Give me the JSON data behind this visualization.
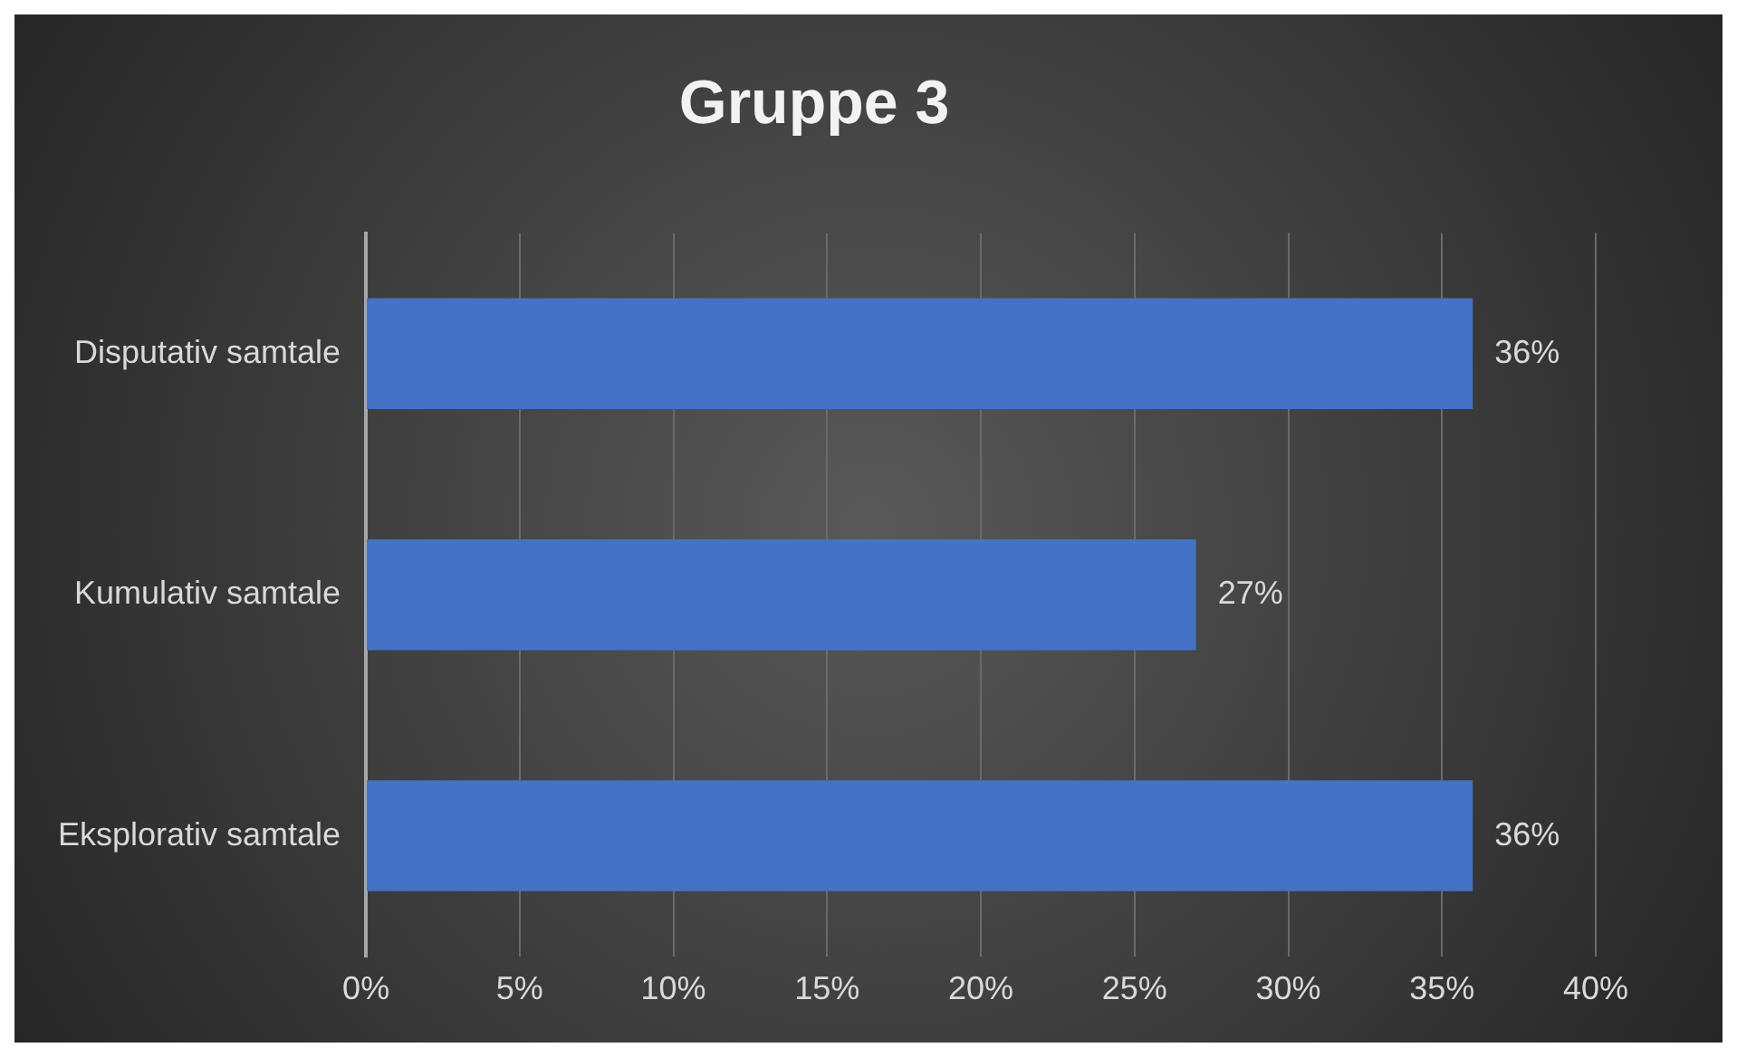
{
  "chart_data": {
    "type": "bar",
    "title": "Gruppe 3",
    "orientation": "horizontal",
    "categories": [
      "Disputativ samtale",
      "Kumulativ samtale",
      "Eksplorativ samtale"
    ],
    "values": [
      36,
      27,
      36
    ],
    "color": "#4472c4",
    "value_labels": [
      "36%",
      "27%",
      "36%"
    ],
    "xlim": [
      0,
      40
    ],
    "xticks": [
      {
        "value": 0,
        "label": "0%"
      },
      {
        "value": 5,
        "label": "5%"
      },
      {
        "value": 10,
        "label": "10%"
      },
      {
        "value": 15,
        "label": "15%"
      },
      {
        "value": 20,
        "label": "20%"
      },
      {
        "value": 25,
        "label": "25%"
      },
      {
        "value": 30,
        "label": "30%"
      },
      {
        "value": 35,
        "label": "35%"
      },
      {
        "value": 40,
        "label": "40%"
      }
    ],
    "grid": "x",
    "legend": false
  }
}
